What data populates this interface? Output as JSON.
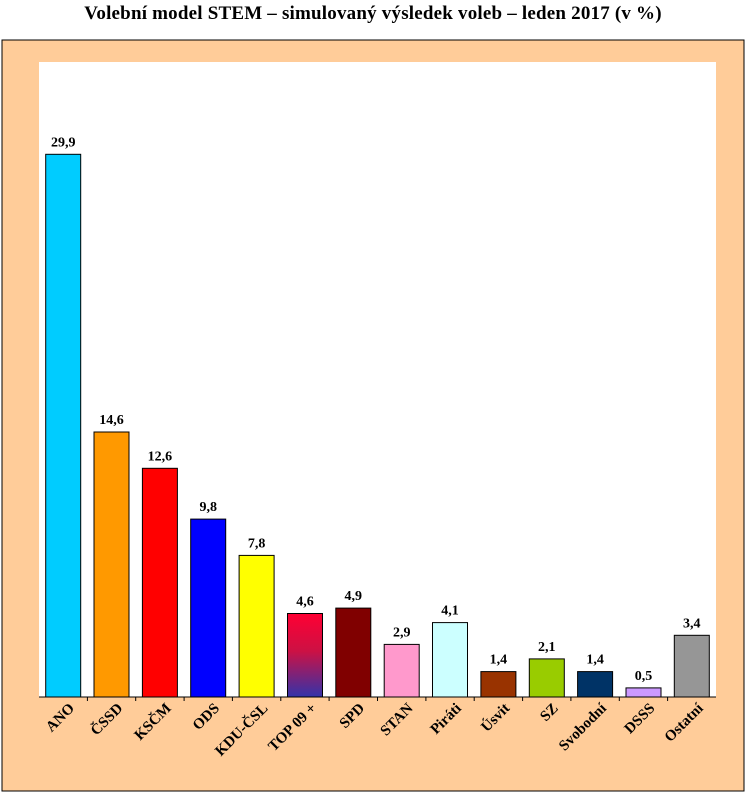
{
  "chart_data": {
    "type": "bar",
    "title": "Volební model STEM – simulovaný výsledek voleb – leden  2017 (v %)",
    "categories": [
      "ANO",
      "ČSSD",
      "KSČM",
      "ODS",
      "KDU-ČSL",
      "TOP 09 +",
      "SPD",
      "STAN",
      "Piráti",
      "Úsvit",
      "SZ",
      "Svobodní",
      "DSSS",
      "Ostatní"
    ],
    "values": [
      29.9,
      14.6,
      12.6,
      9.8,
      7.8,
      4.6,
      4.9,
      2.9,
      4.1,
      1.4,
      2.1,
      1.4,
      0.5,
      3.4
    ],
    "value_labels": [
      "29,9",
      "14,6",
      "12,6",
      "9,8",
      "7,8",
      "4,6",
      "4,9",
      "2,9",
      "4,1",
      "1,4",
      "2,1",
      "1,4",
      "0,5",
      "3,4"
    ],
    "colors": [
      "#00CCFF",
      "#FF9900",
      "#FF0000",
      "#0000FF",
      "#FFFF00",
      "gradient:#FF0000-#3333AA",
      "#800000",
      "#FF99CC",
      "#CCFFFF",
      "#993300",
      "#99CC00",
      "#003366",
      "#CC99FF",
      "#969696"
    ],
    "ylim": [
      0,
      30
    ],
    "grid": false,
    "legend": "none",
    "frame_color": "#FFCC99"
  }
}
